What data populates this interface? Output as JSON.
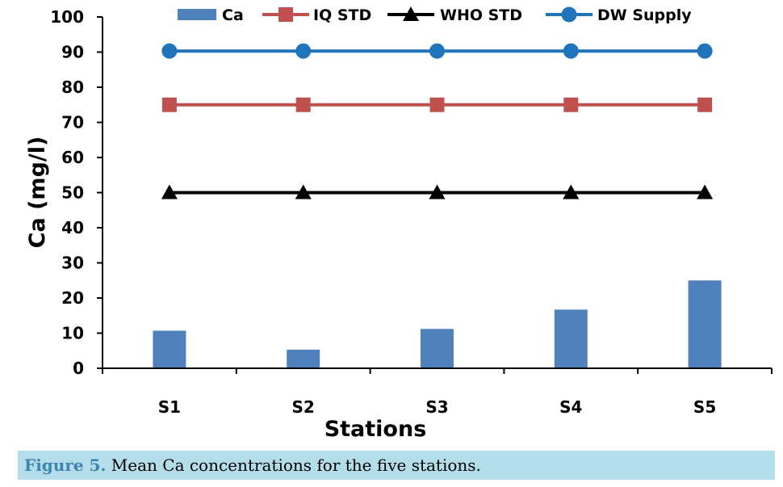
{
  "chart_data": {
    "type": "bar",
    "categories": [
      "S1",
      "S2",
      "S3",
      "S4",
      "S5"
    ],
    "ylabel": "Ca (mg/l)",
    "xlabel": "Stations",
    "ylim": [
      0,
      100
    ],
    "yticks": [
      "0",
      "10",
      "20",
      "30",
      "40",
      "50",
      "60",
      "70",
      "80",
      "90",
      "100"
    ],
    "grid": false,
    "legend_position": "top",
    "series": [
      {
        "name": "Ca",
        "kind": "bar",
        "color": "#4f81bd",
        "values": [
          10.7,
          5.3,
          11.2,
          16.7,
          25.0
        ]
      },
      {
        "name": "IQ STD",
        "kind": "line",
        "marker": "square",
        "color": "#c0504d",
        "values": [
          75,
          75,
          75,
          75,
          75
        ]
      },
      {
        "name": "WHO STD",
        "kind": "line",
        "marker": "triangle",
        "color": "#000000",
        "values": [
          50,
          50,
          50,
          50,
          50
        ]
      },
      {
        "name": "DW Supply",
        "kind": "line",
        "marker": "circle",
        "color": "#1f74bb",
        "values": [
          90.3,
          90.3,
          90.3,
          90.3,
          90.3
        ]
      }
    ]
  },
  "caption": {
    "label": "Figure 5.",
    "text": " Mean Ca concentrations for the five stations."
  }
}
